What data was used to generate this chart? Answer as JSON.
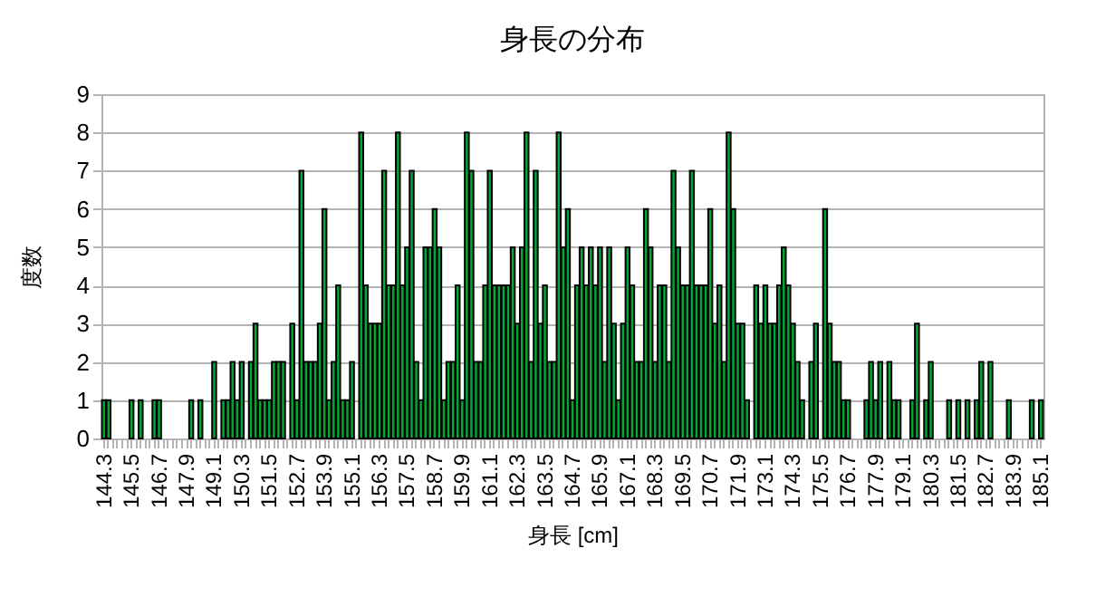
{
  "chart_data": {
    "type": "bar",
    "title": "身長の分布",
    "xlabel": "身長 [cm]",
    "ylabel": "度数",
    "categories": [
      "144.3",
      null,
      null,
      null,
      null,
      null,
      "145.5",
      null,
      null,
      null,
      null,
      null,
      "146.7",
      null,
      null,
      null,
      null,
      null,
      "147.9",
      null,
      null,
      null,
      null,
      null,
      "149.1",
      null,
      null,
      null,
      null,
      null,
      "150.3",
      null,
      null,
      null,
      null,
      null,
      "151.5",
      null,
      null,
      null,
      null,
      null,
      "152.7",
      null,
      null,
      null,
      null,
      null,
      "153.9",
      null,
      null,
      null,
      null,
      null,
      "155.1",
      null,
      null,
      null,
      null,
      null,
      "156.3",
      null,
      null,
      null,
      null,
      null,
      "157.5",
      null,
      null,
      null,
      null,
      null,
      "158.7",
      null,
      null,
      null,
      null,
      null,
      "159.9",
      null,
      null,
      null,
      null,
      null,
      "161.1",
      null,
      null,
      null,
      null,
      null,
      "162.3",
      null,
      null,
      null,
      null,
      null,
      "163.5",
      null,
      null,
      null,
      null,
      null,
      "164.7",
      null,
      null,
      null,
      null,
      null,
      "165.9",
      null,
      null,
      null,
      null,
      null,
      "167.1",
      null,
      null,
      null,
      null,
      null,
      "168.3",
      null,
      null,
      null,
      null,
      null,
      "169.5",
      null,
      null,
      null,
      null,
      null,
      "170.7",
      null,
      null,
      null,
      null,
      null,
      "171.9",
      null,
      null,
      null,
      null,
      null,
      "173.1",
      null,
      null,
      null,
      null,
      null,
      "174.3",
      null,
      null,
      null,
      null,
      null,
      "175.5",
      null,
      null,
      null,
      null,
      null,
      "176.7",
      null,
      null,
      null,
      null,
      null,
      "177.9",
      null,
      null,
      null,
      null,
      null,
      "179.1",
      null,
      null,
      null,
      null,
      null,
      "180.3",
      null,
      null,
      null,
      null,
      null,
      "181.5",
      null,
      null,
      null,
      null,
      null,
      "182.7",
      null,
      null,
      null,
      null,
      null,
      "183.9",
      null,
      null,
      null,
      null,
      null,
      "185.1"
    ],
    "values": [
      1,
      1,
      0,
      0,
      0,
      0,
      1,
      0,
      1,
      0,
      0,
      1,
      1,
      0,
      0,
      0,
      0,
      0,
      0,
      1,
      0,
      1,
      0,
      0,
      2,
      0,
      1,
      1,
      2,
      1,
      2,
      0,
      2,
      3,
      1,
      1,
      1,
      2,
      2,
      2,
      0,
      3,
      1,
      7,
      2,
      2,
      2,
      3,
      6,
      1,
      2,
      4,
      1,
      1,
      2,
      0,
      8,
      4,
      3,
      3,
      3,
      7,
      4,
      4,
      8,
      4,
      5,
      7,
      2,
      1,
      5,
      5,
      6,
      5,
      1,
      2,
      2,
      4,
      1,
      8,
      7,
      2,
      2,
      4,
      7,
      4,
      4,
      4,
      4,
      5,
      3,
      5,
      8,
      2,
      7,
      3,
      4,
      2,
      2,
      8,
      5,
      6,
      1,
      4,
      5,
      4,
      5,
      4,
      5,
      2,
      5,
      3,
      1,
      3,
      5,
      4,
      2,
      2,
      6,
      5,
      2,
      4,
      4,
      2,
      7,
      5,
      4,
      4,
      7,
      4,
      4,
      4,
      6,
      3,
      4,
      2,
      8,
      6,
      3,
      3,
      1,
      0,
      4,
      3,
      4,
      3,
      3,
      4,
      5,
      4,
      3,
      2,
      1,
      0,
      2,
      3,
      0,
      6,
      3,
      2,
      2,
      1,
      1,
      0,
      0,
      0,
      1,
      2,
      1,
      2,
      0,
      2,
      1,
      1,
      0,
      0,
      1,
      3,
      0,
      1,
      2,
      0,
      0,
      0,
      1,
      0,
      1,
      0,
      1,
      0,
      1,
      2,
      0,
      2,
      0,
      0,
      0,
      1,
      0,
      0,
      0,
      0,
      1,
      0,
      1
    ],
    "color": "#00a933",
    "ylim": [
      0,
      9
    ],
    "yticks": [
      0,
      1,
      2,
      3,
      4,
      5,
      6,
      7,
      8,
      9
    ],
    "grid": "y"
  }
}
